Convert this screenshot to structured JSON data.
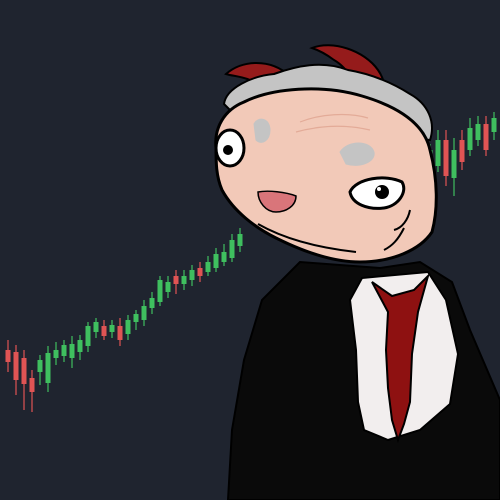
{
  "colors": {
    "background": "#1f242f",
    "up_candle": "#3fbf5f",
    "down_candle": "#e05454",
    "skin": "#f2c9b8",
    "skin_shade": "#e3ab98",
    "hair": "#c4c4c4",
    "horn": "#951b1b",
    "suit": "#0a0a0a",
    "shirt": "#f2eeee",
    "tie": "#8e1111",
    "outline": "#000000",
    "mouth": "#d9757a"
  },
  "chart_data": {
    "type": "candlestick",
    "trend": "upward",
    "candles": [
      {
        "c": "down",
        "o": 350,
        "cl": 362,
        "h": 340,
        "l": 372
      },
      {
        "c": "down",
        "o": 352,
        "cl": 380,
        "h": 345,
        "l": 395
      },
      {
        "c": "down",
        "o": 358,
        "cl": 384,
        "h": 350,
        "l": 410
      },
      {
        "c": "down",
        "o": 378,
        "cl": 392,
        "h": 370,
        "l": 412
      },
      {
        "c": "up",
        "o": 372,
        "cl": 360,
        "h": 355,
        "l": 385
      },
      {
        "c": "up",
        "o": 383,
        "cl": 353,
        "h": 346,
        "l": 392
      },
      {
        "c": "up",
        "o": 358,
        "cl": 350,
        "h": 342,
        "l": 365
      },
      {
        "c": "up",
        "o": 356,
        "cl": 345,
        "h": 340,
        "l": 362
      },
      {
        "c": "up",
        "o": 358,
        "cl": 344,
        "h": 336,
        "l": 368
      },
      {
        "c": "up",
        "o": 352,
        "cl": 340,
        "h": 335,
        "l": 360
      },
      {
        "c": "up",
        "o": 346,
        "cl": 326,
        "h": 322,
        "l": 352
      },
      {
        "c": "up",
        "o": 332,
        "cl": 322,
        "h": 318,
        "l": 338
      },
      {
        "c": "down",
        "o": 326,
        "cl": 336,
        "h": 320,
        "l": 340
      },
      {
        "c": "up",
        "o": 332,
        "cl": 325,
        "h": 320,
        "l": 338
      },
      {
        "c": "down",
        "o": 326,
        "cl": 340,
        "h": 318,
        "l": 346
      },
      {
        "c": "up",
        "o": 334,
        "cl": 320,
        "h": 315,
        "l": 340
      },
      {
        "c": "up",
        "o": 322,
        "cl": 314,
        "h": 310,
        "l": 330
      },
      {
        "c": "up",
        "o": 320,
        "cl": 306,
        "h": 300,
        "l": 326
      },
      {
        "c": "up",
        "o": 308,
        "cl": 298,
        "h": 292,
        "l": 314
      },
      {
        "c": "up",
        "o": 302,
        "cl": 280,
        "h": 276,
        "l": 306
      },
      {
        "c": "up",
        "o": 292,
        "cl": 282,
        "h": 276,
        "l": 298
      },
      {
        "c": "down",
        "o": 276,
        "cl": 284,
        "h": 270,
        "l": 294
      },
      {
        "c": "up",
        "o": 284,
        "cl": 276,
        "h": 270,
        "l": 290
      },
      {
        "c": "up",
        "o": 280,
        "cl": 270,
        "h": 265,
        "l": 286
      },
      {
        "c": "down",
        "o": 268,
        "cl": 276,
        "h": 262,
        "l": 282
      },
      {
        "c": "up",
        "o": 272,
        "cl": 262,
        "h": 256,
        "l": 276
      },
      {
        "c": "up",
        "o": 268,
        "cl": 254,
        "h": 248,
        "l": 272
      },
      {
        "c": "up",
        "o": 262,
        "cl": 252,
        "h": 244,
        "l": 266
      },
      {
        "c": "up",
        "o": 258,
        "cl": 240,
        "h": 234,
        "l": 262
      },
      {
        "c": "up",
        "o": 246,
        "cl": 234,
        "h": 228,
        "l": 252
      },
      {
        "c": "up",
        "o": 162,
        "cl": 150,
        "h": 144,
        "l": 166
      },
      {
        "c": "up",
        "o": 166,
        "cl": 140,
        "h": 130,
        "l": 172
      },
      {
        "c": "down",
        "o": 140,
        "cl": 176,
        "h": 130,
        "l": 186
      },
      {
        "c": "up",
        "o": 178,
        "cl": 150,
        "h": 138,
        "l": 196
      },
      {
        "c": "down",
        "o": 140,
        "cl": 162,
        "h": 130,
        "l": 170
      },
      {
        "c": "up",
        "o": 150,
        "cl": 128,
        "h": 118,
        "l": 156
      },
      {
        "c": "up",
        "o": 140,
        "cl": 124,
        "h": 116,
        "l": 146
      },
      {
        "c": "down",
        "o": 124,
        "cl": 150,
        "h": 116,
        "l": 156
      },
      {
        "c": "up",
        "o": 132,
        "cl": 118,
        "h": 112,
        "l": 140
      }
    ]
  }
}
